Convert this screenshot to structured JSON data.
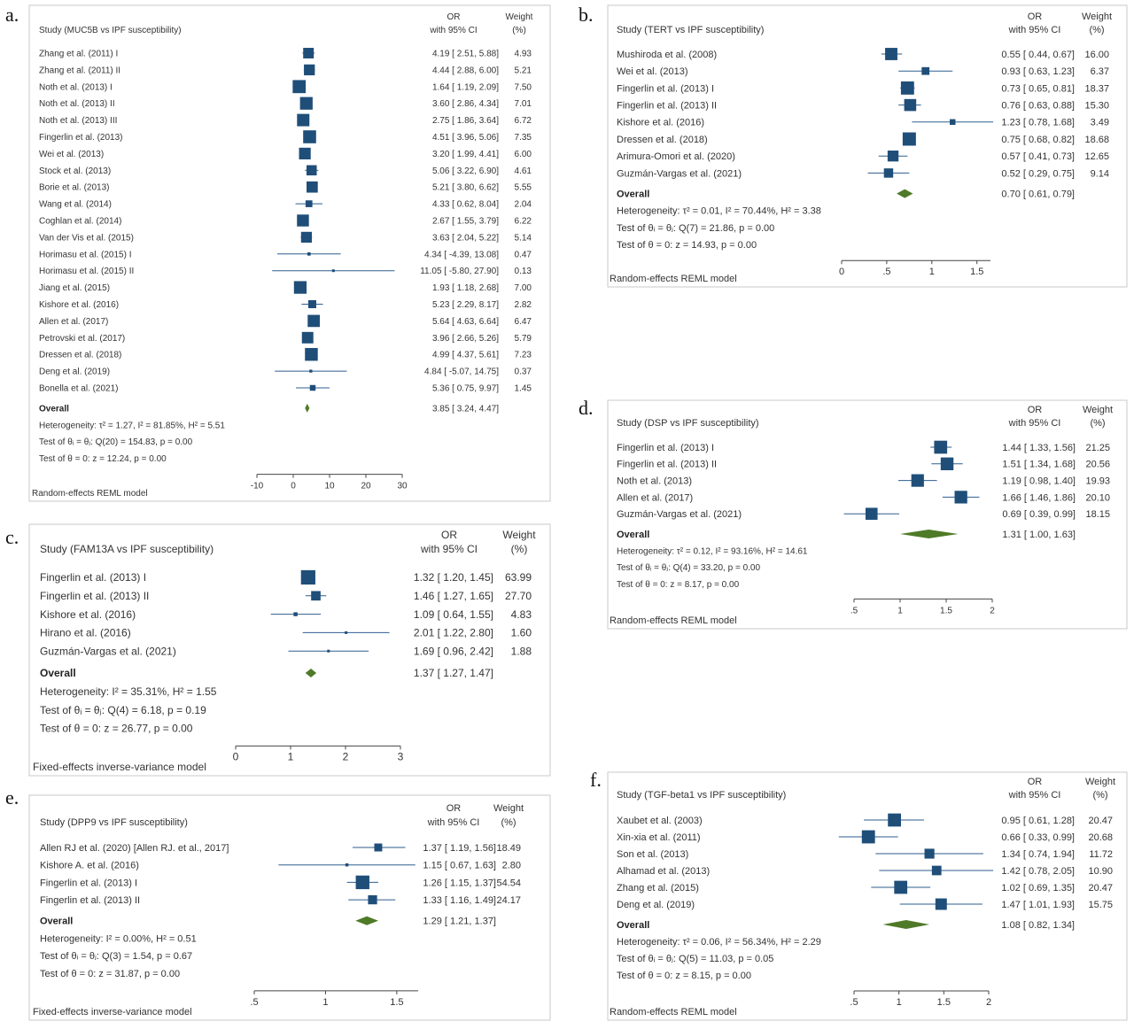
{
  "figure": {
    "panels": [
      {
        "id": "a",
        "label": "a.",
        "title": "Study (MUC5B vs IPF susceptibility)",
        "or_header_1": "OR",
        "or_header_2": "with 95% CI",
        "w_header_1": "Weight",
        "w_header_2": "(%)",
        "overall_label": "Overall",
        "overall_text": "3.85 [ 3.24, 4.47]",
        "stats": [
          "Heterogeneity: τ² = 1.27, I² = 81.85%, H² = 5.51",
          "Test of θᵢ = θⱼ: Q(20) = 154.83, p = 0.00",
          "Test of θ = 0: z = 12.24, p = 0.00"
        ],
        "model": "Random-effects REML model"
      },
      {
        "id": "b",
        "label": "b.",
        "title": "Study (TERT vs IPF susceptibility)",
        "or_header_1": "OR",
        "or_header_2": "with 95% CI",
        "w_header_1": "Weight",
        "w_header_2": "(%)",
        "overall_label": "Overall",
        "overall_text": "0.70 [ 0.61, 0.79]",
        "stats": [
          "Heterogeneity: τ² = 0.01, I² = 70.44%, H² = 3.38",
          "Test of θᵢ = θⱼ: Q(7) = 21.86, p = 0.00",
          "Test of θ = 0: z = 14.93, p = 0.00"
        ],
        "model": "Random-effects REML model"
      },
      {
        "id": "c",
        "label": "c.",
        "title": "Study (FAM13A vs IPF susceptibility)",
        "or_header_1": "OR",
        "or_header_2": "with 95% CI",
        "w_header_1": "Weight",
        "w_header_2": "(%)",
        "overall_label": "Overall",
        "overall_text": "1.37 [ 1.27, 1.47]",
        "stats": [
          "Heterogeneity: I² = 35.31%, H² = 1.55",
          "Test of θᵢ = θⱼ: Q(4) = 6.18, p = 0.19",
          "Test of θ = 0: z = 26.77, p = 0.00"
        ],
        "model": "Fixed-effects inverse-variance model"
      },
      {
        "id": "d",
        "label": "d.",
        "title": "Study (DSP vs IPF susceptibility)",
        "or_header_1": "OR",
        "or_header_2": "with 95% CI",
        "w_header_1": "Weight",
        "w_header_2": "(%)",
        "overall_label": "Overall",
        "overall_text": "1.31 [ 1.00, 1.63]",
        "stats": [
          "Heterogeneity: τ² = 0.12, I² = 93.16%, H² = 14.61",
          "Test of θᵢ = θⱼ: Q(4) = 33.20, p = 0.00",
          "Test of θ = 0: z = 8.17, p = 0.00"
        ],
        "model": "Random-effects REML model"
      },
      {
        "id": "e",
        "label": "e.",
        "title": "Study (DPP9 vs IPF susceptibility)",
        "or_header_1": "OR",
        "or_header_2": "with 95% CI",
        "w_header_1": "Weight",
        "w_header_2": "(%)",
        "overall_label": "Overall",
        "overall_text": "1.29 [ 1.21, 1.37]",
        "stats": [
          "Heterogeneity: I² = 0.00%, H² = 0.51",
          "Test of θᵢ = θⱼ: Q(3) = 1.54, p = 0.67",
          "Test of θ = 0: z = 31.87, p = 0.00"
        ],
        "model": "Fixed-effects inverse-variance model"
      },
      {
        "id": "f",
        "label": "f.",
        "title": "Study (TGF-beta1 vs IPF susceptibility)",
        "or_header_1": "OR",
        "or_header_2": "with 95% CI",
        "w_header_1": "Weight",
        "w_header_2": "(%)",
        "overall_label": "Overall",
        "overall_text": "1.08 [ 0.82, 1.34]",
        "stats": [
          "Heterogeneity: τ² = 0.06, I² = 56.34%, H² = 2.29",
          "Test of θᵢ = θⱼ: Q(5) = 11.03, p = 0.05",
          "Test of θ = 0: z = 8.15, p = 0.00"
        ],
        "model": "Random-effects REML model"
      }
    ]
  },
  "colors": {
    "marker": "#1f4e79",
    "diamond": "#4f7a28",
    "line": "#2e5e8e",
    "axis": "#444444"
  },
  "chart_data": [
    {
      "type": "forest",
      "panel": "a",
      "xlim": [
        -10,
        30
      ],
      "xticks": [
        -10,
        0,
        10,
        20,
        30
      ],
      "overall": {
        "est": 3.85,
        "lo": 3.24,
        "hi": 4.47
      },
      "studies": [
        {
          "name": "Zhang et al. (2011) I",
          "or": 4.19,
          "lo": 2.51,
          "hi": 5.88,
          "weight": 4.93,
          "ci": "4.19 [ 2.51, 5.88]",
          "wt": "4.93"
        },
        {
          "name": "Zhang et al. (2011) II",
          "or": 4.44,
          "lo": 2.88,
          "hi": 6.0,
          "weight": 5.21,
          "ci": "4.44 [ 2.88, 6.00]",
          "wt": "5.21"
        },
        {
          "name": "Noth et al. (2013) I",
          "or": 1.64,
          "lo": 1.19,
          "hi": 2.09,
          "weight": 7.5,
          "ci": "1.64 [ 1.19, 2.09]",
          "wt": "7.50"
        },
        {
          "name": "Noth et al. (2013) II",
          "or": 3.6,
          "lo": 2.86,
          "hi": 4.34,
          "weight": 7.01,
          "ci": "3.60 [ 2.86, 4.34]",
          "wt": "7.01"
        },
        {
          "name": "Noth et al. (2013) III",
          "or": 2.75,
          "lo": 1.86,
          "hi": 3.64,
          "weight": 6.72,
          "ci": "2.75 [ 1.86, 3.64]",
          "wt": "6.72"
        },
        {
          "name": "Fingerlin et al. (2013)",
          "or": 4.51,
          "lo": 3.96,
          "hi": 5.06,
          "weight": 7.35,
          "ci": "4.51 [ 3.96, 5.06]",
          "wt": "7.35"
        },
        {
          "name": "Wei et al. (2013)",
          "or": 3.2,
          "lo": 1.99,
          "hi": 4.41,
          "weight": 6.0,
          "ci": "3.20 [ 1.99, 4.41]",
          "wt": "6.00"
        },
        {
          "name": "Stock et al. (2013)",
          "or": 5.06,
          "lo": 3.22,
          "hi": 6.9,
          "weight": 4.61,
          "ci": "5.06 [ 3.22, 6.90]",
          "wt": "4.61"
        },
        {
          "name": "Borie et al. (2013)",
          "or": 5.21,
          "lo": 3.8,
          "hi": 6.62,
          "weight": 5.55,
          "ci": "5.21 [ 3.80, 6.62]",
          "wt": "5.55"
        },
        {
          "name": "Wang et al. (2014)",
          "or": 4.33,
          "lo": 0.62,
          "hi": 8.04,
          "weight": 2.04,
          "ci": "4.33 [ 0.62, 8.04]",
          "wt": "2.04"
        },
        {
          "name": "Coghlan et al. (2014)",
          "or": 2.67,
          "lo": 1.55,
          "hi": 3.79,
          "weight": 6.22,
          "ci": "2.67 [ 1.55, 3.79]",
          "wt": "6.22"
        },
        {
          "name": "Van der Vis et al. (2015)",
          "or": 3.63,
          "lo": 2.04,
          "hi": 5.22,
          "weight": 5.14,
          "ci": "3.63 [ 2.04, 5.22]",
          "wt": "5.14"
        },
        {
          "name": "Horimasu et al. (2015) I",
          "or": 4.34,
          "lo": -4.39,
          "hi": 13.08,
          "weight": 0.47,
          "ci": "4.34 [ -4.39, 13.08]",
          "wt": "0.47"
        },
        {
          "name": "Horimasu et al. (2015) II",
          "or": 11.05,
          "lo": -5.8,
          "hi": 27.9,
          "weight": 0.13,
          "ci": "11.05 [ -5.80, 27.90]",
          "wt": "0.13"
        },
        {
          "name": "Jiang et al. (2015)",
          "or": 1.93,
          "lo": 1.18,
          "hi": 2.68,
          "weight": 7.0,
          "ci": "1.93 [ 1.18, 2.68]",
          "wt": "7.00"
        },
        {
          "name": "Kishore et al. (2016)",
          "or": 5.23,
          "lo": 2.29,
          "hi": 8.17,
          "weight": 2.82,
          "ci": "5.23 [ 2.29, 8.17]",
          "wt": "2.82"
        },
        {
          "name": "Allen et al. (2017)",
          "or": 5.64,
          "lo": 4.63,
          "hi": 6.64,
          "weight": 6.47,
          "ci": "5.64 [ 4.63, 6.64]",
          "wt": "6.47"
        },
        {
          "name": "Petrovski et al. (2017)",
          "or": 3.96,
          "lo": 2.66,
          "hi": 5.26,
          "weight": 5.79,
          "ci": "3.96 [ 2.66, 5.26]",
          "wt": "5.79"
        },
        {
          "name": "Dressen et al. (2018)",
          "or": 4.99,
          "lo": 4.37,
          "hi": 5.61,
          "weight": 7.23,
          "ci": "4.99 [ 4.37, 5.61]",
          "wt": "7.23"
        },
        {
          "name": "Deng et al. (2019)",
          "or": 4.84,
          "lo": -5.07,
          "hi": 14.75,
          "weight": 0.37,
          "ci": "4.84 [ -5.07, 14.75]",
          "wt": "0.37"
        },
        {
          "name": "Bonella et al. (2021)",
          "or": 5.36,
          "lo": 0.75,
          "hi": 9.97,
          "weight": 1.45,
          "ci": "5.36 [ 0.75, 9.97]",
          "wt": "1.45"
        }
      ]
    },
    {
      "type": "forest",
      "panel": "b",
      "xlim": [
        0,
        1.65
      ],
      "xticks": [
        0,
        0.5,
        1,
        1.5
      ],
      "xticklabels": [
        "0",
        ".5",
        "1",
        "1.5"
      ],
      "overall": {
        "est": 0.7,
        "lo": 0.61,
        "hi": 0.79
      },
      "studies": [
        {
          "name": "Mushiroda et al. (2008)",
          "or": 0.55,
          "lo": 0.44,
          "hi": 0.67,
          "weight": 16.0,
          "ci": "0.55 [ 0.44, 0.67]",
          "wt": "16.00"
        },
        {
          "name": "Wei et al. (2013)",
          "or": 0.93,
          "lo": 0.63,
          "hi": 1.23,
          "weight": 6.37,
          "ci": "0.93 [ 0.63, 1.23]",
          "wt": "6.37"
        },
        {
          "name": "Fingerlin et al. (2013) I",
          "or": 0.73,
          "lo": 0.65,
          "hi": 0.81,
          "weight": 18.37,
          "ci": "0.73 [ 0.65, 0.81]",
          "wt": "18.37"
        },
        {
          "name": "Fingerlin et al. (2013) II",
          "or": 0.76,
          "lo": 0.63,
          "hi": 0.88,
          "weight": 15.3,
          "ci": "0.76 [ 0.63, 0.88]",
          "wt": "15.30"
        },
        {
          "name": "Kishore et al. (2016)",
          "or": 1.23,
          "lo": 0.78,
          "hi": 1.68,
          "weight": 3.49,
          "ci": "1.23 [ 0.78, 1.68]",
          "wt": "3.49"
        },
        {
          "name": "Dressen et al. (2018)",
          "or": 0.75,
          "lo": 0.68,
          "hi": 0.82,
          "weight": 18.68,
          "ci": "0.75 [ 0.68, 0.82]",
          "wt": "18.68"
        },
        {
          "name": "Arimura-Omori et al. (2020)",
          "or": 0.57,
          "lo": 0.41,
          "hi": 0.73,
          "weight": 12.65,
          "ci": "0.57 [ 0.41, 0.73]",
          "wt": "12.65"
        },
        {
          "name": "Guzmán-Vargas et al. (2021)",
          "or": 0.52,
          "lo": 0.29,
          "hi": 0.75,
          "weight": 9.14,
          "ci": "0.52 [ 0.29, 0.75]",
          "wt": "9.14"
        }
      ]
    },
    {
      "type": "forest",
      "panel": "c",
      "xlim": [
        0,
        3
      ],
      "xticks": [
        0,
        1,
        2,
        3
      ],
      "overall": {
        "est": 1.37,
        "lo": 1.27,
        "hi": 1.47
      },
      "studies": [
        {
          "name": "Fingerlin et al. (2013) I",
          "or": 1.32,
          "lo": 1.2,
          "hi": 1.45,
          "weight": 63.99,
          "ci": "1.32 [ 1.20, 1.45]",
          "wt": "63.99"
        },
        {
          "name": "Fingerlin et al. (2013) II",
          "or": 1.46,
          "lo": 1.27,
          "hi": 1.65,
          "weight": 27.7,
          "ci": "1.46 [ 1.27, 1.65]",
          "wt": "27.70"
        },
        {
          "name": "Kishore et al. (2016)",
          "or": 1.09,
          "lo": 0.64,
          "hi": 1.55,
          "weight": 4.83,
          "ci": "1.09 [ 0.64, 1.55]",
          "wt": "4.83"
        },
        {
          "name": "Hirano et al. (2016)",
          "or": 2.01,
          "lo": 1.22,
          "hi": 2.8,
          "weight": 1.6,
          "ci": "2.01 [ 1.22, 2.80]",
          "wt": "1.60"
        },
        {
          "name": "Guzmán-Vargas et al. (2021)",
          "or": 1.69,
          "lo": 0.96,
          "hi": 2.42,
          "weight": 1.88,
          "ci": "1.69 [ 0.96, 2.42]",
          "wt": "1.88"
        }
      ]
    },
    {
      "type": "forest",
      "panel": "d",
      "xlim": [
        0.5,
        2
      ],
      "xticks": [
        0.5,
        1,
        1.5,
        2
      ],
      "xticklabels": [
        ".5",
        "1",
        "1.5",
        "2"
      ],
      "overall": {
        "est": 1.31,
        "lo": 1.0,
        "hi": 1.63
      },
      "studies": [
        {
          "name": "Fingerlin et al. (2013) I",
          "or": 1.44,
          "lo": 1.33,
          "hi": 1.56,
          "weight": 21.25,
          "ci": "1.44 [ 1.33, 1.56]",
          "wt": "21.25"
        },
        {
          "name": "Fingerlin et al. (2013) II",
          "or": 1.51,
          "lo": 1.34,
          "hi": 1.68,
          "weight": 20.56,
          "ci": "1.51 [ 1.34, 1.68]",
          "wt": "20.56"
        },
        {
          "name": "Noth et al. (2013)",
          "or": 1.19,
          "lo": 0.98,
          "hi": 1.4,
          "weight": 19.93,
          "ci": "1.19 [ 0.98, 1.40]",
          "wt": "19.93"
        },
        {
          "name": "Allen et al. (2017)",
          "or": 1.66,
          "lo": 1.46,
          "hi": 1.86,
          "weight": 20.1,
          "ci": "1.66 [ 1.46, 1.86]",
          "wt": "20.10"
        },
        {
          "name": "Guzmán-Vargas et al. (2021)",
          "or": 0.69,
          "lo": 0.39,
          "hi": 0.99,
          "weight": 18.15,
          "ci": "0.69 [ 0.39, 0.99]",
          "wt": "18.15"
        }
      ]
    },
    {
      "type": "forest",
      "panel": "e",
      "xlim": [
        0.5,
        1.65
      ],
      "xticks": [
        0.5,
        1,
        1.5
      ],
      "xticklabels": [
        ".5",
        "1",
        "1.5"
      ],
      "overall": {
        "est": 1.29,
        "lo": 1.21,
        "hi": 1.37
      },
      "studies": [
        {
          "name": "Allen RJ et al. (2020) [Allen RJ. et al., 2017]",
          "or": 1.37,
          "lo": 1.19,
          "hi": 1.56,
          "weight": 18.49,
          "ci": "1.37 [ 1.19, 1.56]",
          "wt": "18.49"
        },
        {
          "name": "Kishore A. et al. (2016)",
          "or": 1.15,
          "lo": 0.67,
          "hi": 1.63,
          "weight": 2.8,
          "ci": "1.15 [ 0.67, 1.63]",
          "wt": "2.80"
        },
        {
          "name": "Fingerlin et al. (2013) I",
          "or": 1.26,
          "lo": 1.15,
          "hi": 1.37,
          "weight": 54.54,
          "ci": "1.26 [ 1.15, 1.37]",
          "wt": "54.54"
        },
        {
          "name": "Fingerlin et al. (2013) II",
          "or": 1.33,
          "lo": 1.16,
          "hi": 1.49,
          "weight": 24.17,
          "ci": "1.33 [ 1.16, 1.49]",
          "wt": "24.17"
        }
      ]
    },
    {
      "type": "forest",
      "panel": "f",
      "xlim": [
        0.5,
        2
      ],
      "xticks": [
        0.5,
        1,
        1.5,
        2
      ],
      "xticklabels": [
        ".5",
        "1",
        "1.5",
        "2"
      ],
      "overall": {
        "est": 1.08,
        "lo": 0.82,
        "hi": 1.34
      },
      "studies": [
        {
          "name": "Xaubet et al. (2003)",
          "or": 0.95,
          "lo": 0.61,
          "hi": 1.28,
          "weight": 20.47,
          "ci": "0.95 [ 0.61, 1.28]",
          "wt": "20.47"
        },
        {
          "name": "Xin-xia et al. (2011)",
          "or": 0.66,
          "lo": 0.33,
          "hi": 0.99,
          "weight": 20.68,
          "ci": "0.66 [ 0.33, 0.99]",
          "wt": "20.68"
        },
        {
          "name": "Son et al. (2013)",
          "or": 1.34,
          "lo": 0.74,
          "hi": 1.94,
          "weight": 11.72,
          "ci": "1.34 [ 0.74, 1.94]",
          "wt": "11.72"
        },
        {
          "name": "Alhamad et al. (2013)",
          "or": 1.42,
          "lo": 0.78,
          "hi": 2.05,
          "weight": 10.9,
          "ci": "1.42 [ 0.78, 2.05]",
          "wt": "10.90"
        },
        {
          "name": "Zhang et al. (2015)",
          "or": 1.02,
          "lo": 0.69,
          "hi": 1.35,
          "weight": 20.47,
          "ci": "1.02 [ 0.69, 1.35]",
          "wt": "20.47"
        },
        {
          "name": "Deng et al. (2019)",
          "or": 1.47,
          "lo": 1.01,
          "hi": 1.93,
          "weight": 15.75,
          "ci": "1.47 [ 1.01, 1.93]",
          "wt": "15.75"
        }
      ]
    }
  ]
}
